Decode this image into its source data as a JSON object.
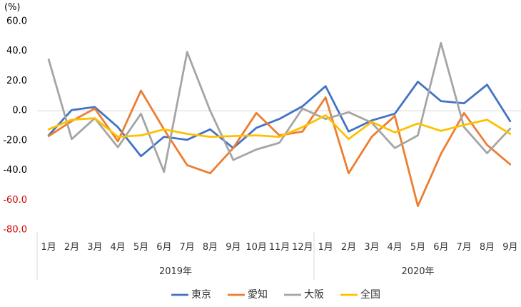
{
  "chart_data": {
    "type": "line",
    "unit_label": "(%)",
    "categories": [
      "1月",
      "2月",
      "3月",
      "4月",
      "5月",
      "6月",
      "7月",
      "8月",
      "9月",
      "10月",
      "11月",
      "12月",
      "1月",
      "2月",
      "3月",
      "4月",
      "5月",
      "6月",
      "7月",
      "8月",
      "9月"
    ],
    "year_groups": [
      {
        "label": "2019年",
        "start": 0,
        "end": 11
      },
      {
        "label": "2020年",
        "start": 12,
        "end": 20
      }
    ],
    "y_ticks": [
      {
        "value": 60,
        "label": "60.0",
        "color": "#000000"
      },
      {
        "value": 40,
        "label": "40.0",
        "color": "#000000"
      },
      {
        "value": 20,
        "label": "20.0",
        "color": "#000000"
      },
      {
        "value": 0,
        "label": "0.0",
        "color": "#000000"
      },
      {
        "value": -20,
        "label": "-20.0",
        "color": "#000000"
      },
      {
        "value": -40,
        "label": "-40.0",
        "color": "#000000"
      },
      {
        "value": -60,
        "label": "-60.0",
        "color": "#cc0000"
      },
      {
        "value": -80,
        "label": "-80.0",
        "color": "#cc0000"
      }
    ],
    "ylim": [
      -80,
      60
    ],
    "series": [
      {
        "name": "東京",
        "color": "#4472C4",
        "values": [
          -16.5,
          0.5,
          2.5,
          -11,
          -30.5,
          -17.5,
          -19.5,
          -12.5,
          -25,
          -11.5,
          -5.5,
          3,
          16.5,
          -14,
          -6.5,
          -2,
          19.5,
          6.5,
          5,
          17.5,
          -7
        ]
      },
      {
        "name": "愛知",
        "color": "#ED7D31",
        "values": [
          -17,
          -7,
          1.5,
          -20.5,
          13.5,
          -12.5,
          -36.5,
          -42,
          -25,
          -1.5,
          -16.5,
          -14,
          9,
          -42,
          -17.5,
          -3.5,
          -64,
          -29,
          -1.5,
          -23,
          -36
        ]
      },
      {
        "name": "大阪",
        "color": "#A5A5A5",
        "values": [
          34.5,
          -19,
          -5,
          -24.5,
          -2,
          -41,
          39.5,
          0,
          -33,
          -26,
          -21.5,
          1.5,
          -5.5,
          -1,
          -8,
          -25,
          -16.5,
          45.5,
          -11,
          -28.5,
          -12
        ]
      },
      {
        "name": "全国",
        "color": "#FFC000",
        "values": [
          -12.5,
          -6,
          -5,
          -17.5,
          -16.5,
          -12.5,
          -15.5,
          -17.5,
          -17,
          -16.5,
          -17.5,
          -11,
          -3,
          -19,
          -7.5,
          -14.5,
          -8.5,
          -13.5,
          -9.5,
          -6,
          -15.5
        ]
      }
    ]
  }
}
